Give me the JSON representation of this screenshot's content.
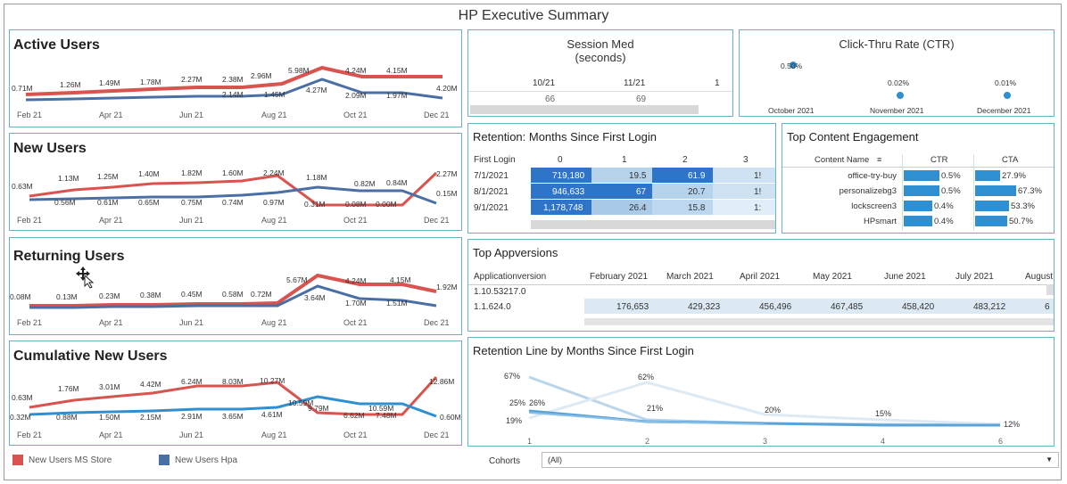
{
  "title": "HP Executive Summary",
  "colors": {
    "red": "#d9534f",
    "blue": "#4a6fa5",
    "lightblue": "#2f8fd0",
    "panel_border": "#6fb0c9"
  },
  "active_users": {
    "title": "Active Users",
    "x_labels": [
      "Feb 21",
      "Apr 21",
      "Jun 21",
      "Aug 21",
      "Oct 21",
      "Dec 21"
    ],
    "red_labels": [
      "0.71M",
      "1.26M",
      "1.49M",
      "1.78M",
      "2.27M",
      "2.38M",
      "2.96M",
      "5.98M",
      "4.24M",
      "4.15M",
      "4.20M"
    ],
    "blue_labels": [
      "2.14M",
      "1.45M",
      "4.27M",
      "2.09M",
      "1.97M"
    ]
  },
  "new_users": {
    "title": "New Users",
    "x_labels": [
      "Feb 21",
      "Apr 21",
      "Jun 21",
      "Aug 21",
      "Oct 21",
      "Dec 21"
    ],
    "red_labels": [
      "0.63M",
      "1.13M",
      "1.25M",
      "1.40M",
      "1.82M",
      "1.60M",
      "2.24M",
      "0.31M",
      "0.08M",
      "0.00M",
      "2.27M"
    ],
    "blue_labels": [
      "0.56M",
      "0.61M",
      "0.65M",
      "0.75M",
      "0.74M",
      "0.97M",
      "1.18M",
      "0.82M",
      "0.84M",
      "0.15M"
    ]
  },
  "returning_users": {
    "title": "Returning Users",
    "x_labels": [
      "Feb 21",
      "Apr 21",
      "Jun 21",
      "Aug 21",
      "Oct 21",
      "Dec 21"
    ],
    "red_labels": [
      "0.08M",
      "0.13M",
      "0.23M",
      "0.38M",
      "0.45M",
      "0.58M",
      "0.72M",
      "5.67M",
      "4.24M",
      "4.15M",
      "1.92M"
    ],
    "blue_labels": [
      "3.64M",
      "1.70M",
      "1.51M"
    ]
  },
  "cumulative_new_users": {
    "title": "Cumulative New Users",
    "x_labels": [
      "Feb 21",
      "Apr 21",
      "Jun 21",
      "Aug 21",
      "Oct 21",
      "Dec 21"
    ],
    "red_labels": [
      "0.63M",
      "1.76M",
      "3.01M",
      "4.42M",
      "6.24M",
      "8.03M",
      "10.27M",
      "6.62M",
      "7.48M",
      "12.86M"
    ],
    "blue_labels": [
      "0.32M",
      "0.88M",
      "1.50M",
      "2.15M",
      "2.91M",
      "3.65M",
      "4.61M",
      "10.59M",
      "9.79M",
      "10.59M",
      "0.60M"
    ]
  },
  "session_med": {
    "title_line1": "Session Med",
    "title_line2": "(seconds)",
    "columns": [
      "10/21",
      "11/21",
      "1"
    ],
    "values": [
      "66",
      "69"
    ]
  },
  "ctr": {
    "title": "Click-Thru Rate (CTR)",
    "points": [
      {
        "label": "0.50%",
        "month": "October 2021"
      },
      {
        "label": "0.02%",
        "month": "November 2021"
      },
      {
        "label": "0.01%",
        "month": "December 2021"
      }
    ]
  },
  "retention": {
    "title": "Retention:  Months Since First Login",
    "header": [
      "First Login",
      "0",
      "1",
      "2",
      "3"
    ],
    "rows": [
      [
        "7/1/2021",
        "719,180",
        "19.5",
        "61.9",
        "1!"
      ],
      [
        "8/1/2021",
        "946,633",
        "67",
        "20.7",
        "1!"
      ],
      [
        "9/1/2021",
        "1,178,748",
        "26.4",
        "15.8",
        "1:"
      ]
    ]
  },
  "top_content": {
    "title": "Top Content Engagement",
    "header": [
      "Content Name",
      "CTR",
      "CTA"
    ],
    "rows": [
      {
        "name": "office-try-buy",
        "ctr": "0.5%",
        "cta": "27.9%",
        "ctr_pct": 0.85,
        "cta_pct": 0.41
      },
      {
        "name": "personalizebg3",
        "ctr": "0.5%",
        "cta": "67.3%",
        "ctr_pct": 0.85,
        "cta_pct": 1.0
      },
      {
        "name": "lockscreen3",
        "ctr": "0.4%",
        "cta": "53.3%",
        "ctr_pct": 0.7,
        "cta_pct": 0.79
      },
      {
        "name": "HPsmart",
        "ctr": "0.4%",
        "cta": "50.7%",
        "ctr_pct": 0.7,
        "cta_pct": 0.75
      }
    ]
  },
  "top_appversions": {
    "title": "Top Appversions",
    "header": [
      "Applicationversion",
      "February 2021",
      "March 2021",
      "April 2021",
      "May 2021",
      "June 2021",
      "July 2021",
      "August"
    ],
    "rows": [
      [
        "1.10.53217.0",
        "",
        "",
        "",
        "",
        "",
        "",
        ""
      ],
      [
        "1.1.624.0",
        "176,653",
        "429,323",
        "456,496",
        "467,485",
        "458,420",
        "483,212",
        "6"
      ]
    ]
  },
  "retention_line": {
    "title": "Retention Line by Months Since First Login",
    "x_labels": [
      "1",
      "2",
      "3",
      "4",
      "6"
    ],
    "labels": [
      "67%",
      "62%",
      "25%",
      "26%",
      "21%",
      "19%",
      "20%",
      "15%",
      "12%"
    ]
  },
  "legend": {
    "ms_store": "New Users MS Store",
    "hpa": "New Users Hpa"
  },
  "filter": {
    "label": "Cohorts",
    "value": "(All)"
  }
}
